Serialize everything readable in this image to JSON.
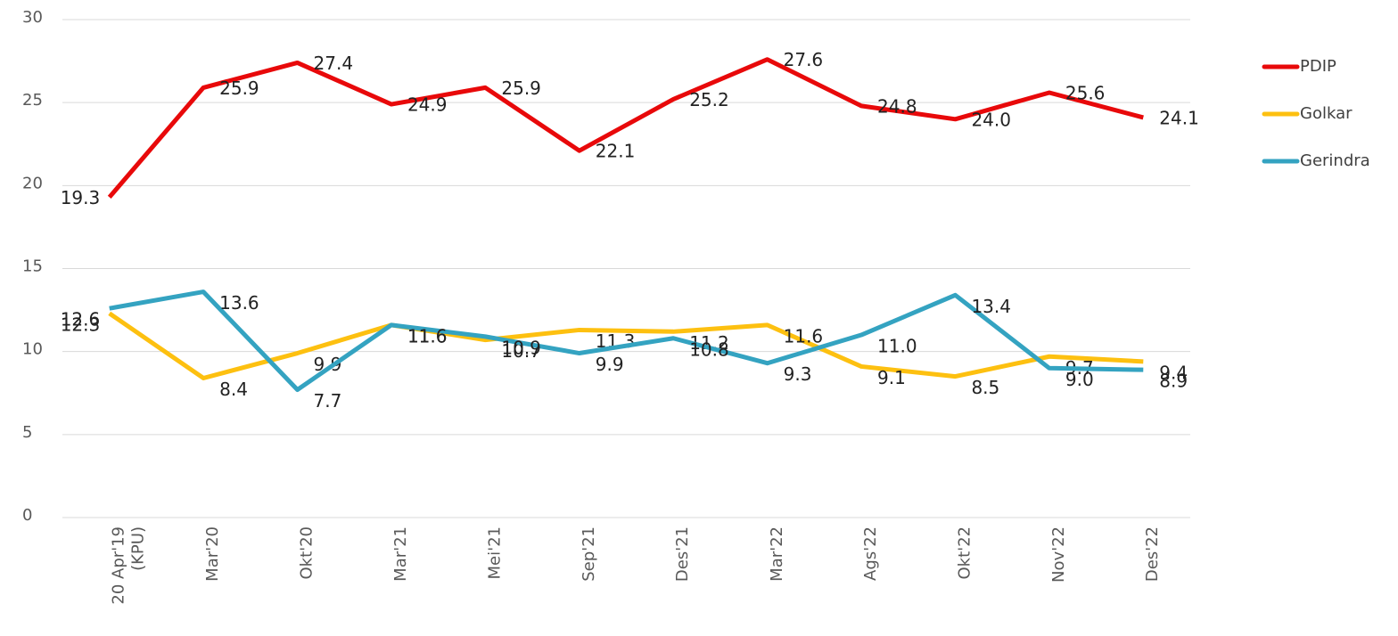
{
  "chart_data": {
    "type": "line",
    "categories": [
      "20 Apr'19\n(KPU)",
      "Mar'20",
      "Okt'20",
      "Mar'21",
      "Mei'21",
      "Sep'21",
      "Des'21",
      "Mar'22",
      "Ags'22",
      "Okt'22",
      "Nov'22",
      "Des'22"
    ],
    "series": [
      {
        "name": "PDIP",
        "color": "#e8090a",
        "values": [
          19.3,
          25.9,
          27.4,
          24.9,
          25.9,
          22.1,
          25.2,
          27.6,
          24.8,
          24.0,
          25.6,
          24.1
        ],
        "value_labels": [
          "19.3",
          "25.9",
          "27.4",
          "24.9",
          "25.9",
          "22.1",
          "25.2",
          "27.6",
          "24.8",
          "24.0",
          "25.6",
          "24.1"
        ]
      },
      {
        "name": "Golkar",
        "color": "#fdc010",
        "values": [
          12.3,
          8.4,
          9.9,
          11.6,
          10.7,
          11.3,
          11.2,
          11.6,
          9.1,
          8.5,
          9.7,
          9.4
        ],
        "value_labels": [
          "12.3",
          "8.4",
          "9.9",
          "11.6",
          "10.7",
          "11.3",
          "11.2",
          "11.6",
          "9.1",
          "8.5",
          "9.7",
          "9.4"
        ]
      },
      {
        "name": "Gerindra",
        "color": "#34a3c1",
        "values": [
          12.6,
          13.6,
          7.7,
          11.6,
          10.9,
          9.9,
          10.8,
          9.3,
          11.0,
          13.4,
          9.0,
          8.9
        ],
        "value_labels": [
          "12.6",
          "13.6",
          "7.7",
          "11.6",
          "10.9",
          "9.9",
          "10.8",
          "9.3",
          "11.0",
          "13.4",
          "9.0",
          "8.9"
        ]
      }
    ],
    "ylim": [
      0,
      30
    ],
    "yticks": [
      0,
      5,
      10,
      15,
      20,
      25,
      30
    ],
    "grid": true,
    "legend": "right"
  }
}
